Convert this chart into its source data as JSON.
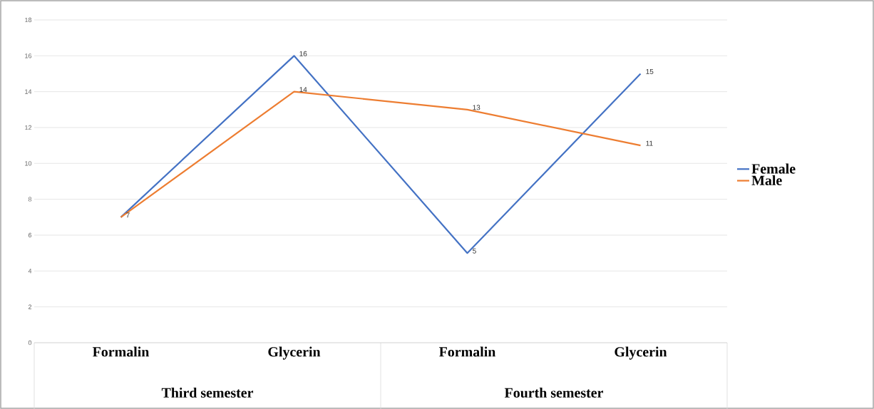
{
  "chart_data": {
    "type": "line",
    "categories": [
      "Formalin",
      "Glycerin",
      "Formalin",
      "Glycerin"
    ],
    "series": [
      {
        "name": "Female",
        "color": "#4472c4",
        "values": [
          7,
          16,
          5,
          15
        ],
        "value_labels": [
          null,
          "16",
          "5",
          "15"
        ]
      },
      {
        "name": "Male",
        "color": "#ed7d31",
        "values": [
          7,
          14,
          13,
          11
        ],
        "value_labels": [
          "7",
          "14",
          "13",
          "11"
        ]
      }
    ],
    "annotations": [
      "Third semester",
      "Fourth semester"
    ],
    "ylim": [
      0,
      18
    ],
    "yticks": [
      0,
      2,
      4,
      6,
      8,
      10,
      12,
      14,
      16,
      18
    ],
    "grid": "y",
    "legend": "right",
    "line_style": "solid"
  }
}
